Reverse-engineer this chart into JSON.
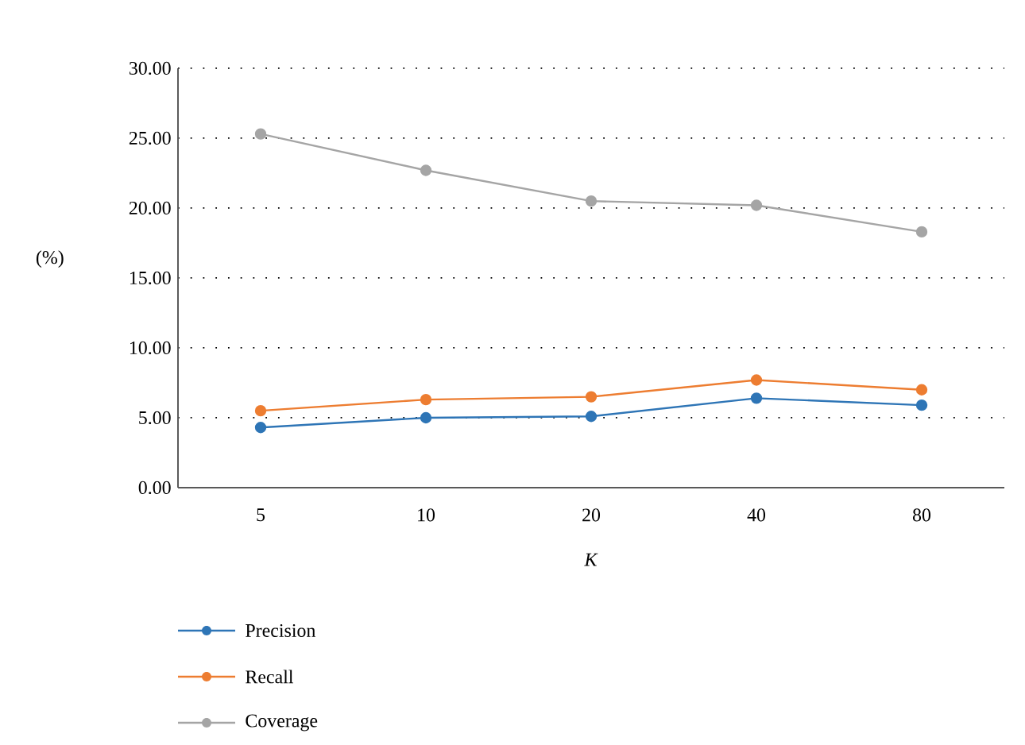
{
  "chart_data": {
    "type": "line",
    "xlabel": "*K*",
    "ylabel": "(%)",
    "categories": [
      "5",
      "10",
      "20",
      "40",
      "80"
    ],
    "series": [
      {
        "name": "Precision",
        "color": "#2e75b6",
        "values": [
          4.3,
          5.0,
          5.1,
          6.4,
          5.9
        ]
      },
      {
        "name": "Recall",
        "color": "#ed7d31",
        "values": [
          5.5,
          6.3,
          6.5,
          7.7,
          7.0
        ]
      },
      {
        "name": "Coverage",
        "color": "#a5a5a5",
        "values": [
          25.3,
          22.7,
          20.5,
          20.2,
          18.3
        ]
      }
    ],
    "ylim": [
      0,
      30
    ],
    "yticks": [
      {
        "value": 0,
        "label": "0.00"
      },
      {
        "value": 5,
        "label": "5.00"
      },
      {
        "value": 10,
        "label": "10.00"
      },
      {
        "value": 15,
        "label": "15.00"
      },
      {
        "value": 20,
        "label": "20.00"
      },
      {
        "value": 25,
        "label": "25.00"
      },
      {
        "value": 30,
        "label": "30.00"
      }
    ],
    "grid": "y",
    "legend": "bottom",
    "marker": "circle",
    "line_style": "solid"
  }
}
